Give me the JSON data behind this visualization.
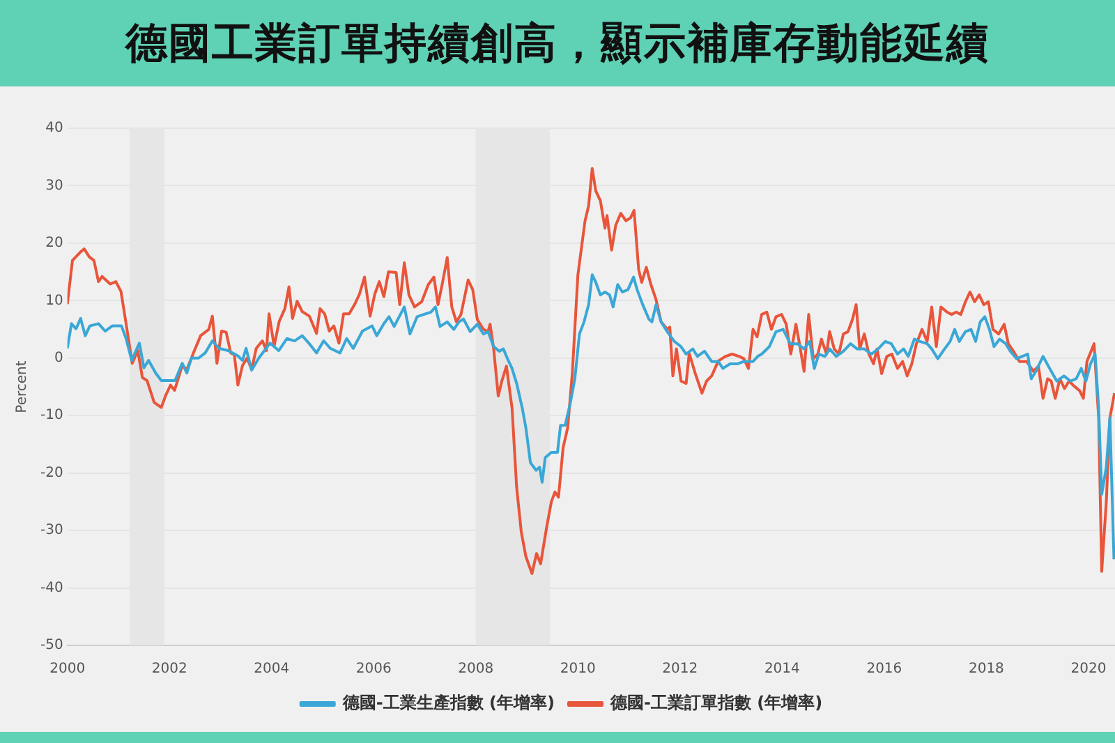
{
  "chart_data": {
    "type": "line",
    "title": "德國工業訂單持續創高，顯示補庫存動能延續",
    "ylabel": "Percent",
    "xlim": [
      2000,
      2020.52
    ],
    "xticks": [
      2000,
      2002,
      2004,
      2006,
      2008,
      2010,
      2012,
      2014,
      2016,
      2018,
      2020
    ],
    "ylim": [
      -50,
      40
    ],
    "yticks": [
      -50,
      -40,
      -30,
      -20,
      -10,
      0,
      10,
      20,
      30,
      40
    ],
    "grid": "y",
    "legend": "bottom",
    "marker": "none",
    "line_style": "solid",
    "bands": [
      {
        "axis": "x",
        "from": 2001.22,
        "to": 2001.9,
        "color": "#e6e6e6"
      },
      {
        "axis": "x",
        "from": 2008.0,
        "to": 2009.45,
        "color": "#e6e6e6"
      }
    ],
    "series": [
      {
        "name": "德國-工業生產指數 (年增率)",
        "color": "#3aa7d6",
        "x": [
          2000,
          2000.08,
          2000.17,
          2000.26,
          2000.35,
          2000.44,
          2000.61,
          2000.74,
          2000.88,
          2001.06,
          2001.15,
          2001.26,
          2001.41,
          2001.5,
          2001.59,
          2001.73,
          2001.84,
          2002.02,
          2002.11,
          2002.25,
          2002.34,
          2002.43,
          2002.57,
          2002.7,
          2002.84,
          2002.97,
          2003.15,
          2003.34,
          2003.43,
          2003.5,
          2003.61,
          2003.75,
          2003.86,
          2003.97,
          2004.14,
          2004.3,
          2004.45,
          2004.6,
          2004.73,
          2004.88,
          2005.02,
          2005.15,
          2005.34,
          2005.47,
          2005.6,
          2005.78,
          2005.97,
          2006.06,
          2006.2,
          2006.3,
          2006.4,
          2006.5,
          2006.6,
          2006.71,
          2006.85,
          2006.98,
          2007.12,
          2007.21,
          2007.3,
          2007.44,
          2007.57,
          2007.67,
          2007.76,
          2007.89,
          2008.03,
          2008.15,
          2008.24,
          2008.35,
          2008.46,
          2008.54,
          2008.62,
          2008.71,
          2008.8,
          2008.91,
          2008.98,
          2009.07,
          2009.18,
          2009.25,
          2009.3,
          2009.36,
          2009.48,
          2009.6,
          2009.66,
          2009.75,
          2009.85,
          2009.94,
          2010.03,
          2010.12,
          2010.21,
          2010.28,
          2010.35,
          2010.44,
          2010.53,
          2010.62,
          2010.69,
          2010.78,
          2010.87,
          2010.98,
          2011.09,
          2011.16,
          2011.27,
          2011.39,
          2011.45,
          2011.53,
          2011.63,
          2011.75,
          2011.89,
          2012.02,
          2012.12,
          2012.25,
          2012.34,
          2012.48,
          2012.62,
          2012.75,
          2012.84,
          2012.98,
          2013.12,
          2013.25,
          2013.43,
          2013.52,
          2013.6,
          2013.75,
          2013.88,
          2014.02,
          2014.16,
          2014.3,
          2014.43,
          2014.54,
          2014.63,
          2014.72,
          2014.84,
          2014.93,
          2015.06,
          2015.2,
          2015.34,
          2015.47,
          2015.61,
          2015.75,
          2015.88,
          2016.02,
          2016.14,
          2016.26,
          2016.38,
          2016.47,
          2016.59,
          2016.7,
          2016.84,
          2016.93,
          2017.05,
          2017.15,
          2017.29,
          2017.38,
          2017.47,
          2017.59,
          2017.7,
          2017.79,
          2017.88,
          2017.97,
          2018.06,
          2018.15,
          2018.26,
          2018.38,
          2018.47,
          2018.59,
          2018.7,
          2018.81,
          2018.88,
          2018.97,
          2019.11,
          2019.24,
          2019.38,
          2019.52,
          2019.65,
          2019.76,
          2019.86,
          2019.95,
          2020.04,
          2020.13,
          2020.2,
          2020.26,
          2020.35,
          2020.42,
          2020.5
        ],
        "values": [
          1.7,
          6,
          5.1,
          6.9,
          3.9,
          5.6,
          6,
          4.7,
          5.6,
          5.6,
          3.4,
          -0.4,
          2.6,
          -1.7,
          -0.4,
          -2.6,
          -3.9,
          -3.9,
          -3.9,
          -0.9,
          -2.6,
          0,
          0,
          0.9,
          3,
          1.7,
          1.3,
          0.4,
          -0.4,
          1.7,
          -2.1,
          0,
          1.3,
          2.6,
          1.3,
          3.4,
          3,
          3.9,
          2.6,
          0.9,
          3,
          1.7,
          0.9,
          3.4,
          1.7,
          4.7,
          5.6,
          3.9,
          6,
          7.2,
          5.5,
          7.2,
          8.9,
          4.2,
          7.2,
          7.6,
          8,
          8.9,
          5.5,
          6.3,
          5,
          6.3,
          6.8,
          4.6,
          5.9,
          4.2,
          4.6,
          2,
          1.2,
          1.6,
          -0.1,
          -1.8,
          -4.4,
          -8.7,
          -12.1,
          -18.2,
          -19.5,
          -19,
          -21.6,
          -17.3,
          -16.4,
          -16.4,
          -11.7,
          -11.7,
          -7.9,
          -3.6,
          4.2,
          6.3,
          9.3,
          14.5,
          13.2,
          11,
          11.5,
          11,
          8.9,
          12.8,
          11.5,
          11.9,
          14.1,
          11.9,
          9.3,
          6.8,
          6.3,
          9.3,
          6.3,
          4.6,
          2.9,
          2,
          0.7,
          1.6,
          0.3,
          1.2,
          -0.6,
          -0.6,
          -1.8,
          -1,
          -1,
          -0.6,
          -0.6,
          0.3,
          0.7,
          2,
          4.6,
          5,
          2.5,
          2.5,
          1.6,
          2.9,
          -1.8,
          0.7,
          0.3,
          1.6,
          0.3,
          1.2,
          2.5,
          1.6,
          1.6,
          0.7,
          1.6,
          2.9,
          2.5,
          0.7,
          1.6,
          0.3,
          3.3,
          2.9,
          2.5,
          1.6,
          -0.1,
          1.2,
          2.9,
          5,
          2.9,
          4.6,
          5,
          2.9,
          6.3,
          7.2,
          5,
          2,
          3.3,
          2.5,
          1.2,
          -0.1,
          0.3,
          0.7,
          -3.6,
          -2.3,
          0.3,
          -1.8,
          -4,
          -3.1,
          -4,
          -3.6,
          -1.8,
          -4,
          -1,
          0.7,
          -8.7,
          -23.7,
          -19,
          -10.4,
          -35
        ]
      },
      {
        "name": "德國-工業訂單指數 (年增率)",
        "color": "#e8553a",
        "x": [
          2000,
          2000.1,
          2000.25,
          2000.33,
          2000.43,
          2000.52,
          2000.61,
          2000.68,
          2000.84,
          2000.95,
          2001.05,
          2001.15,
          2001.27,
          2001.38,
          2001.47,
          2001.56,
          2001.7,
          2001.84,
          2001.93,
          2002.02,
          2002.1,
          2002.25,
          2002.34,
          2002.47,
          2002.61,
          2002.77,
          2002.84,
          2002.93,
          2003.02,
          2003.11,
          2003.2,
          2003.27,
          2003.34,
          2003.43,
          2003.52,
          2003.61,
          2003.7,
          2003.82,
          2003.9,
          2003.95,
          2004.05,
          2004.15,
          2004.26,
          2004.34,
          2004.41,
          2004.5,
          2004.6,
          2004.74,
          2004.88,
          2004.95,
          2005.04,
          2005.13,
          2005.22,
          2005.32,
          2005.41,
          2005.52,
          2005.63,
          2005.72,
          2005.82,
          2005.93,
          2006.02,
          2006.11,
          2006.2,
          2006.29,
          2006.44,
          2006.51,
          2006.6,
          2006.69,
          2006.8,
          2006.94,
          2007.07,
          2007.18,
          2007.26,
          2007.35,
          2007.44,
          2007.53,
          2007.62,
          2007.71,
          2007.85,
          2007.94,
          2008.03,
          2008.15,
          2008.24,
          2008.28,
          2008.35,
          2008.44,
          2008.51,
          2008.6,
          2008.71,
          2008.8,
          2008.89,
          2008.98,
          2009.1,
          2009.19,
          2009.27,
          2009.39,
          2009.48,
          2009.55,
          2009.62,
          2009.71,
          2009.8,
          2009.89,
          2010,
          2010.14,
          2010.21,
          2010.28,
          2010.35,
          2010.44,
          2010.53,
          2010.57,
          2010.66,
          2010.74,
          2010.84,
          2010.94,
          2011.03,
          2011.1,
          2011.19,
          2011.25,
          2011.34,
          2011.43,
          2011.53,
          2011.63,
          2011.75,
          2011.8,
          2011.86,
          2011.93,
          2012.02,
          2012.12,
          2012.18,
          2012.3,
          2012.43,
          2012.52,
          2012.62,
          2012.75,
          2012.89,
          2013.02,
          2013.16,
          2013.25,
          2013.34,
          2013.43,
          2013.51,
          2013.6,
          2013.7,
          2013.79,
          2013.88,
          2013.99,
          2014.08,
          2014.17,
          2014.27,
          2014.34,
          2014.43,
          2014.52,
          2014.61,
          2014.7,
          2014.77,
          2014.87,
          2014.93,
          2015.02,
          2015.11,
          2015.2,
          2015.29,
          2015.38,
          2015.45,
          2015.52,
          2015.61,
          2015.7,
          2015.79,
          2015.86,
          2015.95,
          2016.05,
          2016.15,
          2016.26,
          2016.36,
          2016.45,
          2016.54,
          2016.63,
          2016.74,
          2016.84,
          2016.93,
          2017.02,
          2017.11,
          2017.23,
          2017.32,
          2017.41,
          2017.5,
          2017.59,
          2017.68,
          2017.77,
          2017.86,
          2017.95,
          2018.04,
          2018.13,
          2018.24,
          2018.35,
          2018.43,
          2018.53,
          2018.65,
          2018.79,
          2018.92,
          2019.02,
          2019.11,
          2019.2,
          2019.27,
          2019.35,
          2019.44,
          2019.53,
          2019.62,
          2019.71,
          2019.83,
          2019.9,
          2019.97,
          2020.11,
          2020.2,
          2020.26,
          2020.35,
          2020.42,
          2020.51
        ],
        "values": [
          9.4,
          17,
          18.4,
          19,
          17.6,
          17,
          13.3,
          14.2,
          12.9,
          13.3,
          11.6,
          6,
          -0.9,
          1.3,
          -3.4,
          -3.9,
          -7.7,
          -8.6,
          -6.4,
          -4.7,
          -5.6,
          -1.3,
          -2,
          0.9,
          3.9,
          5,
          7.3,
          -0.9,
          4.7,
          4.5,
          0.9,
          0.6,
          -4.7,
          -1.3,
          0,
          -2,
          1.7,
          3,
          1.3,
          7.7,
          2.1,
          6.4,
          8.6,
          12.4,
          6.9,
          9.9,
          8.1,
          7.3,
          4.3,
          8.6,
          7.7,
          4.7,
          5.6,
          2.6,
          7.7,
          7.7,
          9.4,
          11.1,
          14.1,
          7.3,
          11.1,
          13.3,
          10.7,
          15,
          14.9,
          9.3,
          16.6,
          11,
          8.9,
          9.8,
          12.8,
          14.1,
          9.3,
          13.2,
          17.5,
          8.9,
          6.3,
          7.6,
          13.6,
          11.9,
          6.7,
          5,
          4.6,
          5.9,
          1.6,
          -6.6,
          -4,
          -1.4,
          -8.7,
          -22.5,
          -30.2,
          -34.5,
          -37.5,
          -34,
          -35.8,
          -29.3,
          -25,
          -23.3,
          -24.2,
          -15.6,
          -12.1,
          -2.7,
          14.5,
          23.9,
          26.5,
          33,
          29.1,
          27.4,
          22.6,
          24.8,
          18.8,
          23.1,
          25.2,
          23.9,
          24.4,
          25.7,
          15.4,
          13.2,
          15.8,
          12.8,
          10.2,
          6.3,
          5,
          5.4,
          -3.1,
          1.6,
          -4,
          -4.4,
          0.8,
          -2.7,
          -6.1,
          -4,
          -3.1,
          -0.5,
          0.3,
          0.7,
          0.3,
          -0.1,
          -1.8,
          5,
          3.7,
          7.6,
          8,
          5,
          7.2,
          7.6,
          5.9,
          0.7,
          5.9,
          2.5,
          -2.3,
          7.6,
          -0.1,
          0.7,
          3.3,
          0.7,
          4.6,
          1.6,
          0.7,
          4.2,
          4.6,
          6.8,
          9.3,
          1.6,
          4.2,
          0.7,
          -1,
          1.6,
          -2.7,
          0.3,
          0.7,
          -1.8,
          -0.6,
          -3.1,
          -1,
          2.5,
          5,
          2.9,
          8.9,
          2,
          8.9,
          8,
          7.6,
          8,
          7.6,
          9.8,
          11.5,
          9.8,
          11,
          9.3,
          9.8,
          5,
          4.2,
          5.9,
          2.5,
          1.2,
          -0.6,
          -0.6,
          -2.3,
          -1.4,
          -7,
          -3.6,
          -4,
          -7,
          -3.6,
          -5.3,
          -4,
          -4.8,
          -5.7,
          -7,
          -0.6,
          2.5,
          -10.4,
          -37.1,
          -25,
          -10.4,
          -6.1
        ]
      }
    ]
  }
}
